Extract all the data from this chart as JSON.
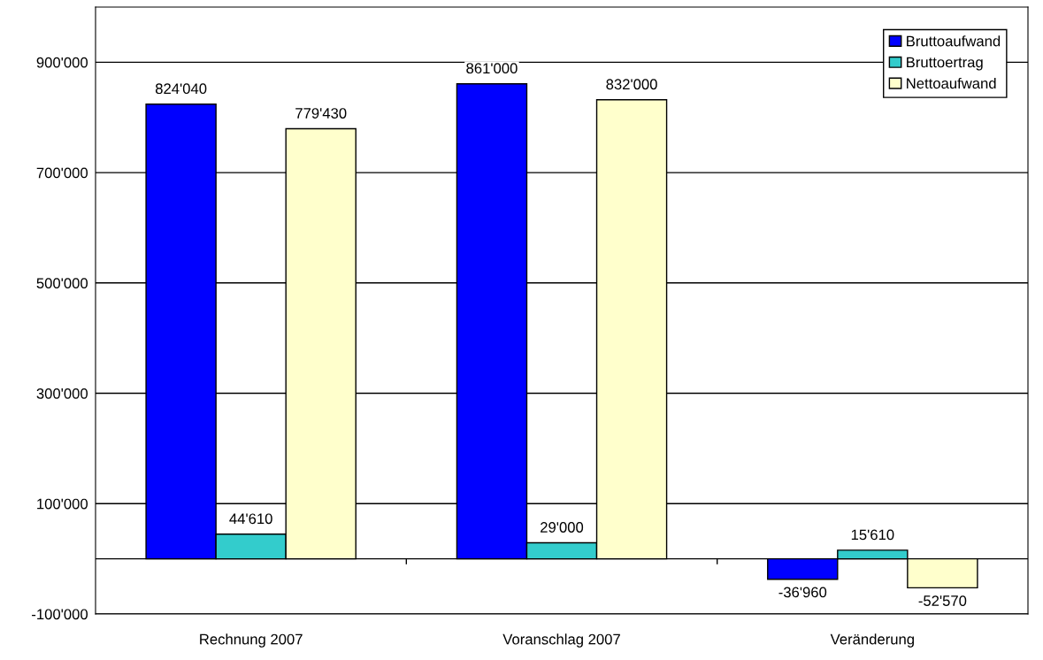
{
  "chart_data": {
    "type": "bar",
    "categories": [
      "Rechnung 2007",
      "Voranschlag 2007",
      "Veränderung"
    ],
    "series": [
      {
        "name": "Bruttoaufwand",
        "color": "#0000ff",
        "values": [
          824040,
          861000,
          -36960
        ],
        "value_labels": [
          "824'040",
          "861'000",
          "-36'960"
        ]
      },
      {
        "name": "Bruttoertrag",
        "color": "#33cccc",
        "values": [
          44610,
          29000,
          15610
        ],
        "value_labels": [
          "44'610",
          "29'000",
          "15'610"
        ]
      },
      {
        "name": "Nettoaufwand",
        "color": "#ffffcc",
        "values": [
          779430,
          832000,
          -52570
        ],
        "value_labels": [
          "779'430",
          "832'000",
          "-52'570"
        ]
      }
    ],
    "ylim": [
      -100000,
      1000000
    ],
    "yticks": [
      {
        "value": -100000,
        "label": "-100'000"
      },
      {
        "value": 100000,
        "label": "100'000"
      },
      {
        "value": 300000,
        "label": "300'000"
      },
      {
        "value": 500000,
        "label": "500'000"
      },
      {
        "value": 700000,
        "label": "700'000"
      },
      {
        "value": 900000,
        "label": "900'000"
      }
    ],
    "ref_lines": [
      {
        "axis": "y",
        "value": 0,
        "color": "#000000"
      }
    ],
    "grid": "y",
    "legend": "top right"
  }
}
